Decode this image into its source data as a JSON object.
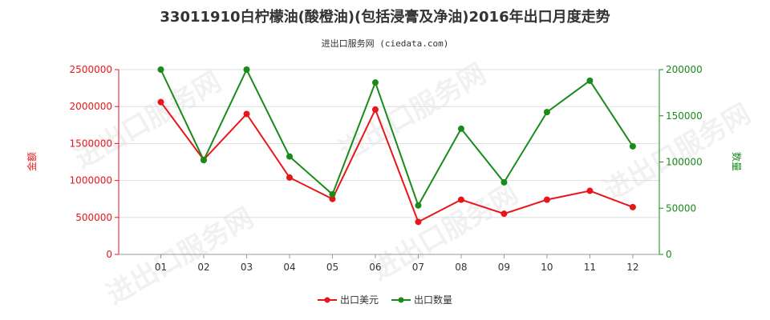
{
  "chart_data": {
    "type": "line",
    "title": "33011910白柠檬油(酸橙油)(包括浸膏及净油)2016年出口月度走势",
    "subtitle": "进出口服务网 (ciedata.com)",
    "categories": [
      "01",
      "02",
      "03",
      "04",
      "05",
      "06",
      "07",
      "08",
      "09",
      "10",
      "11",
      "12"
    ],
    "series": [
      {
        "name": "出口美元",
        "axis": "left",
        "color": "#e8161b",
        "values": [
          2060000,
          1280000,
          1900000,
          1040000,
          750000,
          1960000,
          440000,
          740000,
          550000,
          740000,
          860000,
          640000
        ]
      },
      {
        "name": "出口数量",
        "axis": "right",
        "color": "#1a8a1a",
        "values": [
          200000,
          102000,
          200000,
          106000,
          65000,
          186000,
          53000,
          136000,
          78000,
          154000,
          188000,
          117000
        ]
      }
    ],
    "y_left": {
      "label": "金额",
      "min": 0,
      "max": 2500000,
      "ticks": [
        "0",
        "500000",
        "1000000",
        "1500000",
        "2000000",
        "2500000"
      ],
      "color": "#e8161b"
    },
    "y_right": {
      "label": "数量",
      "min": 0,
      "max": 200000,
      "ticks": [
        "0",
        "50000",
        "100000",
        "150000",
        "200000"
      ],
      "color": "#1a8a1a"
    },
    "legend_position": "bottom-center",
    "grid": "horizontal",
    "watermark": "进出口服务网"
  }
}
